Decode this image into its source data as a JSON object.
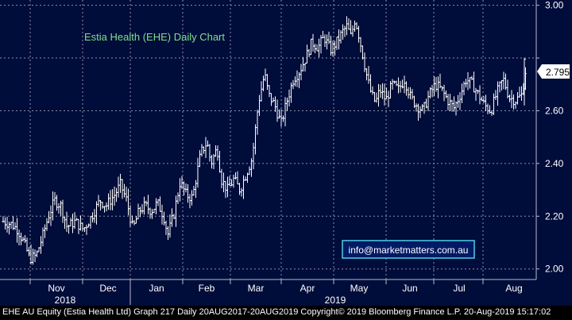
{
  "chart_data": {
    "type": "ohlc",
    "title": "Estia Health (EHE) Daily Chart",
    "watermark": "info@marketmatters.com.au",
    "last_price_label": "2.795",
    "last_price": 2.795,
    "ylim": [
      1.96,
      3.02
    ],
    "y_ticks": [
      {
        "value": 3.0,
        "label": "3.00"
      },
      {
        "value": 2.8,
        "label": ""
      },
      {
        "value": 2.6,
        "label": "2.60"
      },
      {
        "value": 2.4,
        "label": "2.40"
      },
      {
        "value": 2.2,
        "label": "2.20"
      },
      {
        "value": 2.0,
        "label": "2.00"
      }
    ],
    "x_months": [
      "Nov",
      "Dec",
      "Jan",
      "Feb",
      "Mar",
      "Apr",
      "May",
      "Jun",
      "Jul",
      "Aug"
    ],
    "x_years": [
      "2018",
      "2019"
    ],
    "grid": true,
    "colors": {
      "background": "#000c3a",
      "price_bars": "#ffffff",
      "grid": "#8a8fa8",
      "title": "#7fe08a",
      "watermark_border": "#4fd0e8"
    },
    "price_path": [
      [
        0,
        2.18
      ],
      [
        8,
        2.17
      ],
      [
        14,
        2.15
      ],
      [
        20,
        2.1
      ],
      [
        26,
        2.04
      ],
      [
        32,
        2.05
      ],
      [
        38,
        2.12
      ],
      [
        44,
        2.2
      ],
      [
        50,
        2.26
      ],
      [
        56,
        2.24
      ],
      [
        62,
        2.16
      ],
      [
        70,
        2.18
      ],
      [
        78,
        2.15
      ],
      [
        86,
        2.2
      ],
      [
        94,
        2.26
      ],
      [
        100,
        2.24
      ],
      [
        108,
        2.28
      ],
      [
        114,
        2.32
      ],
      [
        120,
        2.26
      ],
      [
        126,
        2.15
      ],
      [
        132,
        2.22
      ],
      [
        138,
        2.24
      ],
      [
        144,
        2.22
      ],
      [
        150,
        2.25
      ],
      [
        156,
        2.2
      ],
      [
        160,
        2.13
      ],
      [
        166,
        2.21
      ],
      [
        172,
        2.33
      ],
      [
        178,
        2.28
      ],
      [
        184,
        2.27
      ],
      [
        192,
        2.44
      ],
      [
        198,
        2.48
      ],
      [
        202,
        2.4
      ],
      [
        208,
        2.46
      ],
      [
        212,
        2.34
      ],
      [
        218,
        2.3
      ],
      [
        224,
        2.34
      ],
      [
        230,
        2.3
      ],
      [
        236,
        2.36
      ],
      [
        242,
        2.42
      ],
      [
        248,
        2.63
      ],
      [
        254,
        2.74
      ],
      [
        258,
        2.66
      ],
      [
        264,
        2.62
      ],
      [
        270,
        2.55
      ],
      [
        276,
        2.64
      ],
      [
        282,
        2.72
      ],
      [
        288,
        2.75
      ],
      [
        294,
        2.8
      ],
      [
        300,
        2.86
      ],
      [
        306,
        2.84
      ],
      [
        312,
        2.88
      ],
      [
        318,
        2.83
      ],
      [
        324,
        2.86
      ],
      [
        330,
        2.9
      ],
      [
        334,
        2.92
      ],
      [
        338,
        2.88
      ],
      [
        342,
        2.95
      ],
      [
        346,
        2.88
      ],
      [
        350,
        2.8
      ],
      [
        354,
        2.72
      ],
      [
        358,
        2.66
      ],
      [
        362,
        2.63
      ],
      [
        366,
        2.68
      ],
      [
        372,
        2.64
      ],
      [
        378,
        2.7
      ],
      [
        384,
        2.68
      ],
      [
        390,
        2.72
      ],
      [
        396,
        2.65
      ],
      [
        402,
        2.62
      ],
      [
        408,
        2.6
      ],
      [
        414,
        2.66
      ],
      [
        420,
        2.7
      ],
      [
        426,
        2.68
      ],
      [
        432,
        2.64
      ],
      [
        438,
        2.61
      ],
      [
        444,
        2.66
      ],
      [
        450,
        2.72
      ],
      [
        456,
        2.7
      ],
      [
        462,
        2.66
      ],
      [
        468,
        2.62
      ],
      [
        474,
        2.6
      ],
      [
        480,
        2.67
      ],
      [
        486,
        2.72
      ],
      [
        492,
        2.65
      ],
      [
        498,
        2.64
      ],
      [
        504,
        2.66
      ],
      [
        508,
        2.76
      ]
    ]
  },
  "footer": {
    "text": "EHE AU Equity (Estia Health Ltd) Graph 217  Daily 20AUG2017-20AUG2019  Copyright© 2019 Bloomberg Finance L.P.  20-Aug-2019 15:17:02"
  }
}
